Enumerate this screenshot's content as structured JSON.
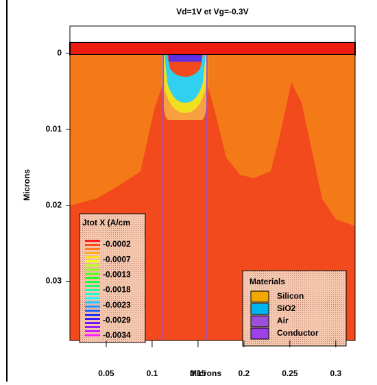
{
  "chart_data": {
    "type": "contour",
    "title": "Vd=1V et Vg=-0.3V",
    "x_label": "Microns",
    "y_label": "Microns",
    "xlim": [
      0.0105,
      0.321
    ],
    "ylim": [
      -0.0036,
      0.0378
    ],
    "xticks": [
      0.05,
      0.1,
      0.15,
      0.2,
      0.25,
      0.3
    ],
    "yticks": [
      0,
      0.01,
      0.02,
      0.03
    ],
    "colorbar": {
      "title": "Jtot X (A/cm",
      "levels": [
        -0.0002,
        -0.0007,
        -0.0013,
        -0.0018,
        -0.0023,
        -0.0029,
        -0.0034
      ]
    },
    "materials": {
      "title": "Materials",
      "items": [
        {
          "name": "Silicon",
          "color": "#f0a800"
        },
        {
          "name": "SiO2",
          "color": "#00b4f0"
        },
        {
          "name": "Air",
          "color": "#9a50d8"
        },
        {
          "name": "Conductor",
          "color": "#a040e8"
        }
      ]
    }
  }
}
